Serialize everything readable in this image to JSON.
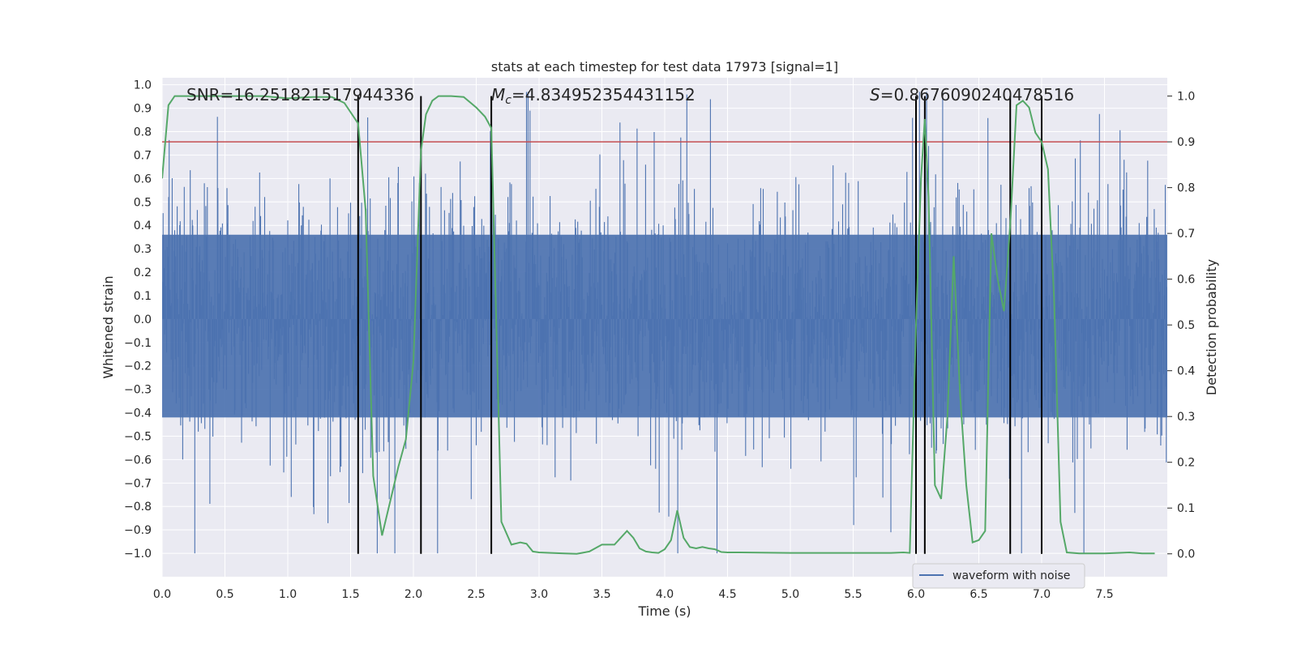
{
  "chart_data": {
    "type": "line",
    "title": "stats at each timestep for test data 17973 [signal=1]",
    "xlabel": "Time (s)",
    "ylabel_left": "Whitened strain",
    "ylabel_right": "Detection probability",
    "xlim": [
      0.0,
      8.0
    ],
    "ylim_left": [
      -1.1,
      1.03
    ],
    "ylim_right": [
      -0.05,
      1.04
    ],
    "x_ticks": [
      "0.0",
      "0.5",
      "1.0",
      "1.5",
      "2.0",
      "2.5",
      "3.0",
      "3.5",
      "4.0",
      "4.5",
      "5.0",
      "5.5",
      "6.0",
      "6.5",
      "7.0",
      "7.5"
    ],
    "y_left_ticks": [
      "1.0",
      "0.9",
      "0.8",
      "0.7",
      "0.6",
      "0.5",
      "0.4",
      "0.3",
      "0.2",
      "0.1",
      "0.0",
      "−0.1",
      "−0.2",
      "−0.3",
      "−0.4",
      "−0.5",
      "−0.6",
      "−0.7",
      "−0.8",
      "−0.9",
      "−1.0"
    ],
    "y_right_ticks": [
      "1.0",
      "0.9",
      "0.8",
      "0.7",
      "0.6",
      "0.5",
      "0.4",
      "0.3",
      "0.2",
      "0.1",
      "0.0"
    ],
    "grid": true,
    "legend": {
      "position": "bottom-right",
      "entries": [
        "waveform with noise"
      ]
    },
    "annotations": {
      "snr": "SNR=16.251821517944336",
      "mc_symbol": "M",
      "mc_sub": "c",
      "mc_value": "=4.834952354431152",
      "s_symbol": "S",
      "s_value": "=0.8676090240478516"
    },
    "threshold": 0.9,
    "vertical_markers": [
      1.56,
      2.06,
      2.62,
      6.0,
      6.07,
      6.75,
      7.0
    ],
    "waveform": {
      "name": "waveform with noise",
      "color": "#4c72b0",
      "noise_band": [
        -0.42,
        0.36
      ],
      "x_range": [
        0.0,
        8.0
      ]
    },
    "series": [
      {
        "name": "Detection probability",
        "color": "#55a868",
        "x": [
          0.0,
          0.05,
          0.1,
          0.2,
          0.4,
          0.6,
          0.8,
          1.0,
          1.2,
          1.35,
          1.45,
          1.56,
          1.62,
          1.68,
          1.75,
          1.82,
          1.88,
          1.94,
          2.0,
          2.06,
          2.1,
          2.15,
          2.2,
          2.3,
          2.4,
          2.5,
          2.57,
          2.62,
          2.7,
          2.78,
          2.85,
          2.9,
          2.95,
          3.0,
          3.1,
          3.2,
          3.3,
          3.4,
          3.5,
          3.6,
          3.7,
          3.75,
          3.8,
          3.85,
          3.9,
          3.95,
          4.0,
          4.05,
          4.1,
          4.15,
          4.2,
          4.25,
          4.3,
          4.35,
          4.4,
          4.45,
          4.5,
          4.6,
          5.0,
          5.5,
          5.8,
          5.9,
          5.95,
          6.0,
          6.04,
          6.07,
          6.1,
          6.15,
          6.2,
          6.25,
          6.3,
          6.35,
          6.4,
          6.45,
          6.5,
          6.55,
          6.6,
          6.65,
          6.7,
          6.75,
          6.8,
          6.85,
          6.9,
          6.95,
          7.0,
          7.05,
          7.1,
          7.15,
          7.2,
          7.25,
          7.3,
          7.5,
          7.6,
          7.7,
          7.8,
          7.9
        ],
        "y": [
          0.82,
          0.98,
          1.0,
          1.0,
          1.0,
          1.0,
          1.0,
          0.995,
          0.998,
          0.998,
          0.985,
          0.94,
          0.75,
          0.17,
          0.04,
          0.12,
          0.19,
          0.25,
          0.42,
          0.88,
          0.96,
          0.99,
          1.0,
          1.0,
          0.998,
          0.975,
          0.955,
          0.93,
          0.07,
          0.02,
          0.025,
          0.022,
          0.005,
          0.003,
          0.002,
          0.001,
          0.0,
          0.005,
          0.02,
          0.02,
          0.05,
          0.035,
          0.012,
          0.005,
          0.003,
          0.002,
          0.01,
          0.03,
          0.095,
          0.035,
          0.015,
          0.012,
          0.015,
          0.012,
          0.01,
          0.004,
          0.003,
          0.003,
          0.002,
          0.002,
          0.002,
          0.003,
          0.002,
          0.5,
          0.82,
          0.95,
          0.78,
          0.15,
          0.12,
          0.3,
          0.65,
          0.35,
          0.15,
          0.025,
          0.03,
          0.05,
          0.7,
          0.6,
          0.53,
          0.72,
          0.98,
          0.99,
          0.975,
          0.92,
          0.9,
          0.84,
          0.55,
          0.07,
          0.003,
          0.002,
          0.001,
          0.001,
          0.002,
          0.003,
          0.001,
          0.001
        ]
      }
    ]
  }
}
